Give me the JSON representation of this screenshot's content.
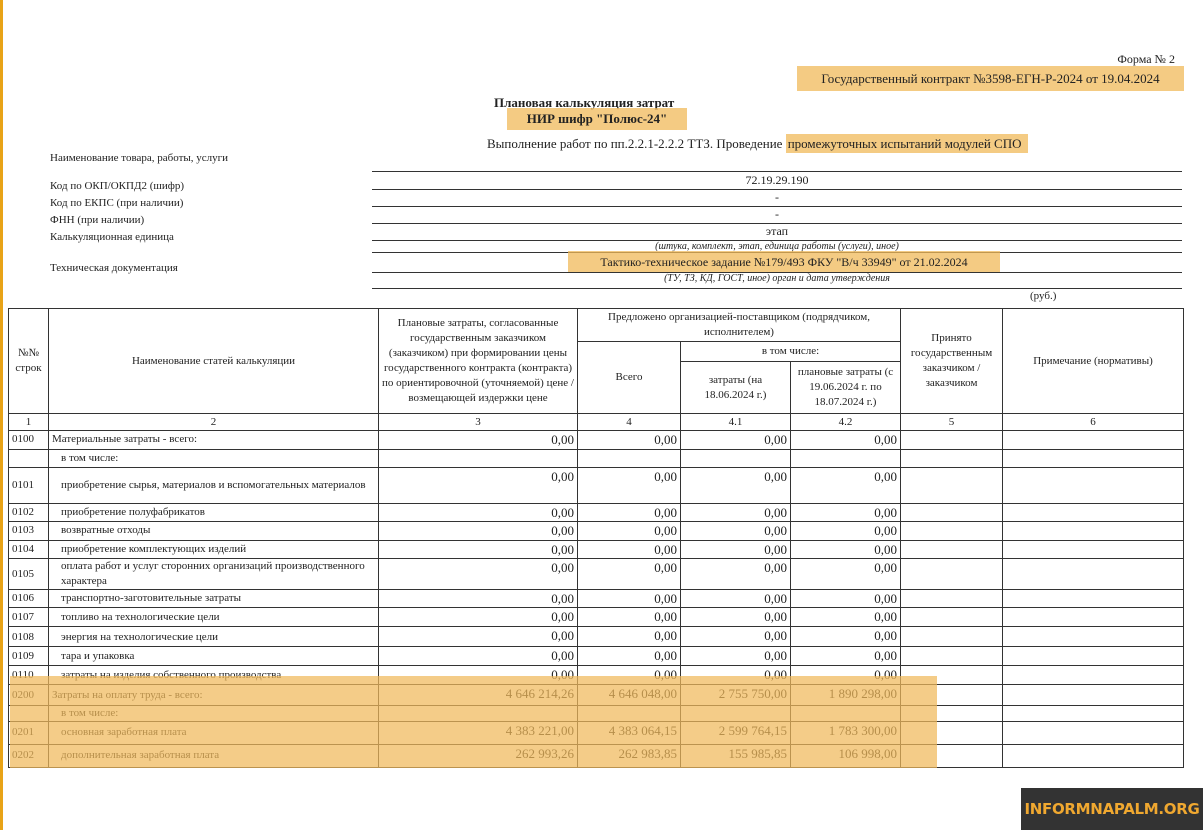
{
  "form_number": "Форма № 2",
  "contract": "Государственный контракт №3598-ЕГН-Р-2024 от 19.04.2024",
  "title": "Плановая калькуляция затрат",
  "subtitle": "НИР шифр \"Полюс-24\"",
  "work_description_prefix": "Выполнение работ по пп.2.2.1-2.2.2 ТТЗ. Проведение ",
  "work_description_highlight": "промежуточных испытаний модулей СПО",
  "fields": {
    "name_label": "Наименование товара, работы, услуги",
    "okpd_label": "Код по ОКП/ОКПД2 (шифр)",
    "okpd_value": "72.19.29.190",
    "ekps_label": "Код по ЕКПС (при наличии)",
    "ekps_value": "-",
    "fnn_label": "ФНН (при наличии)",
    "fnn_value": "-",
    "unit_label": "Калькуляционная единица",
    "unit_value": "этап",
    "unit_hint": "(штука, комплект, этап, единица работы (услуги), иное)",
    "techdoc_label": "Техническая документация",
    "techdoc_value": "Тактико-техническое задание №179/493 ФКУ \"В/ч 33949\" от 21.02.2024",
    "techdoc_hint": "(ТУ, ТЗ, КД, ГОСТ, иное) орган и дата утверждения",
    "currency": "(руб.)"
  },
  "table": {
    "headers": {
      "row_no": "№№ строк",
      "item_name": "Наименование статей калькуляции",
      "planned": "Плановые затраты, согласованные государственным заказчиком (заказчиком) при формировании цены государственного контракта (контракта) по ориентировочной (уточняемой) цене / возмещающей издержки цене",
      "proposed": "Предложено организацией-поставщиком (подрядчиком, исполнителем)",
      "total": "Всего",
      "including": "в том числе:",
      "costs_to_date": "затраты (на 18.06.2024 г.)",
      "planned_period": "плановые затраты (с 19.06.2024 г. по 18.07.2024 г.)",
      "accepted": "Принято государственным заказчиком / заказчиком",
      "note": "Примечание (нормативы)"
    },
    "column_numbers": [
      "1",
      "2",
      "3",
      "4",
      "4.1",
      "4.2",
      "5",
      "6"
    ],
    "rows": [
      {
        "code": "0100",
        "name": "Материальные затраты - всего:",
        "indent": false,
        "values": [
          "0,00",
          "0,00",
          "0,00",
          "0,00"
        ],
        "h": 18
      },
      {
        "code": "",
        "name": "в том числе:",
        "indent": true,
        "values": [
          "",
          "",
          "",
          ""
        ],
        "h": 18
      },
      {
        "code": "0101",
        "name": "приобретение сырья, материалов и вспомогательных материалов",
        "indent": true,
        "values": [
          "0,00",
          "0,00",
          "0,00",
          "0,00"
        ],
        "h": 36
      },
      {
        "code": "0102",
        "name": "приобретение полуфабрикатов",
        "indent": true,
        "values": [
          "0,00",
          "0,00",
          "0,00",
          "0,00"
        ],
        "h": 17
      },
      {
        "code": "0103",
        "name": "возвратные отходы",
        "indent": true,
        "values": [
          "0,00",
          "0,00",
          "0,00",
          "0,00"
        ],
        "h": 17
      },
      {
        "code": "0104",
        "name": "приобретение комплектующих изделий",
        "indent": true,
        "values": [
          "0,00",
          "0,00",
          "0,00",
          "0,00"
        ],
        "h": 17
      },
      {
        "code": "0105",
        "name": "оплата работ и услуг сторонних организаций производственного характера",
        "indent": true,
        "values": [
          "0,00",
          "0,00",
          "0,00",
          "0,00"
        ],
        "h": 30
      },
      {
        "code": "0106",
        "name": "транспортно-заготовительные затраты",
        "indent": true,
        "values": [
          "0,00",
          "0,00",
          "0,00",
          "0,00"
        ],
        "h": 18
      },
      {
        "code": "0107",
        "name": "топливо на технологические цели",
        "indent": true,
        "values": [
          "0,00",
          "0,00",
          "0,00",
          "0,00"
        ],
        "h": 19
      },
      {
        "code": "0108",
        "name": "энергия на технологические цели",
        "indent": true,
        "values": [
          "0,00",
          "0,00",
          "0,00",
          "0,00"
        ],
        "h": 20
      },
      {
        "code": "0109",
        "name": "тара и упаковка",
        "indent": true,
        "values": [
          "0,00",
          "0,00",
          "0,00",
          "0,00"
        ],
        "h": 17
      },
      {
        "code": "0110",
        "name": "затраты на изделия собственного производства",
        "indent": true,
        "values": [
          "0,00",
          "0,00",
          "0,00",
          "0,00"
        ],
        "h": 19
      },
      {
        "code": "0200",
        "name": "Затраты на оплату труда - всего:",
        "indent": false,
        "values": [
          "4 646 214,26",
          "4 646 048,00",
          "2 755 750,00",
          "1 890 298,00"
        ],
        "h": 21
      },
      {
        "code": "",
        "name": "в том числе:",
        "indent": true,
        "values": [
          "",
          "",
          "",
          ""
        ],
        "h": 15
      },
      {
        "code": "0201",
        "name": "основная заработная плата",
        "indent": true,
        "values": [
          "4 383 221,00",
          "4 383 064,15",
          "2 599 764,15",
          "1 783 300,00"
        ],
        "h": 23
      },
      {
        "code": "0202",
        "name": "дополнительная заработная плата",
        "indent": true,
        "values": [
          "262 993,26",
          "262 983,85",
          "155 985,85",
          "106 998,00"
        ],
        "h": 23
      }
    ]
  },
  "watermark": "INFORMNAPALM.ORG",
  "colors": {
    "highlight": "#f0b95a",
    "accent_stripe": "#e8a317",
    "watermark_bg": "#333333",
    "watermark_text": "#f0a830"
  }
}
